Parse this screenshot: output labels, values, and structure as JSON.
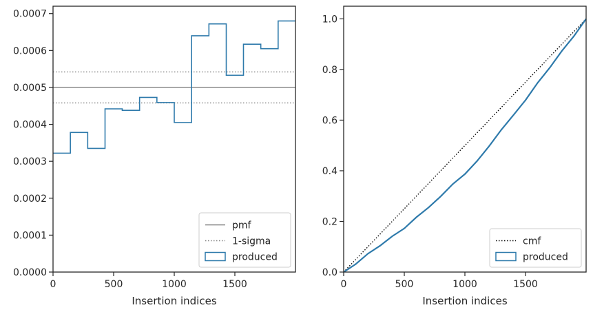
{
  "colors": {
    "produced": "#2e7aab",
    "pmf": "#808080",
    "sigma": "#808080",
    "cmf": "#000000",
    "axes": "#262626"
  },
  "chart_data": [
    {
      "type": "step",
      "xlabel": "Insertion indices",
      "ylabel": "",
      "xlim": [
        0,
        2000
      ],
      "ylim": [
        0,
        0.00072
      ],
      "xticks": [
        0,
        500,
        1000,
        1500
      ],
      "xtick_labels": [
        "0",
        "500",
        "1000",
        "1500"
      ],
      "yticks": [
        0,
        0.0001,
        0.0002,
        0.0003,
        0.0004,
        0.0005,
        0.0006,
        0.0007
      ],
      "ytick_labels": [
        "0.0000",
        "0.0001",
        "0.0002",
        "0.0003",
        "0.0004",
        "0.0005",
        "0.0006",
        "0.0007"
      ],
      "bin_edges": [
        0,
        143,
        286,
        429,
        571,
        714,
        857,
        1000,
        1143,
        1286,
        1429,
        1571,
        1714,
        1857,
        2000
      ],
      "series": [
        {
          "name": "produced",
          "style": "step",
          "values": [
            0.000322,
            0.000378,
            0.000335,
            0.000442,
            0.000438,
            0.000473,
            0.000459,
            0.000405,
            0.00064,
            0.000672,
            0.000533,
            0.000617,
            0.000605,
            0.00068
          ]
        }
      ],
      "hlines": [
        {
          "name": "pmf",
          "y": 0.0005,
          "style": "solid"
        },
        {
          "name": "1-sigma",
          "y": 0.000542,
          "style": "dotted"
        },
        {
          "name": "1-sigma-lower",
          "y": 0.000458,
          "style": "dotted"
        }
      ],
      "legend": {
        "position": "lower-right",
        "entries": [
          "pmf",
          "1-sigma",
          "produced"
        ]
      }
    },
    {
      "type": "line",
      "xlabel": "Insertion indices",
      "ylabel": "",
      "xlim": [
        0,
        2000
      ],
      "ylim": [
        0,
        1.05
      ],
      "xticks": [
        0,
        500,
        1000,
        1500
      ],
      "xtick_labels": [
        "0",
        "500",
        "1000",
        "1500"
      ],
      "yticks": [
        0,
        0.2,
        0.4,
        0.6,
        0.8,
        1.0
      ],
      "ytick_labels": [
        "0.0",
        "0.2",
        "0.4",
        "0.6",
        "0.8",
        "1.0"
      ],
      "series": [
        {
          "name": "cmf",
          "style": "dotted",
          "x": [
            0,
            2000
          ],
          "y": [
            0,
            1.0
          ]
        },
        {
          "name": "produced",
          "style": "solid",
          "x": [
            0,
            100,
            200,
            300,
            400,
            500,
            600,
            700,
            800,
            900,
            1000,
            1100,
            1200,
            1300,
            1400,
            1500,
            1600,
            1700,
            1800,
            1900,
            2000
          ],
          "y": [
            0,
            0.033,
            0.07,
            0.107,
            0.138,
            0.175,
            0.215,
            0.255,
            0.3,
            0.345,
            0.39,
            0.435,
            0.5,
            0.56,
            0.62,
            0.68,
            0.745,
            0.81,
            0.87,
            0.935,
            1.0
          ]
        }
      ],
      "legend": {
        "position": "lower-right",
        "entries": [
          "cmf",
          "produced"
        ]
      }
    }
  ]
}
